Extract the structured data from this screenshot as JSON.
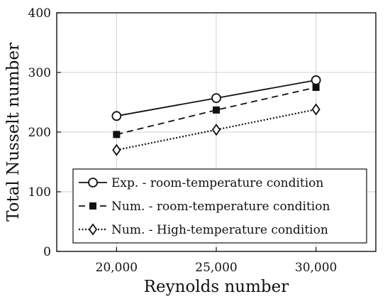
{
  "chart_data": {
    "type": "line",
    "title": "",
    "xlabel": "Reynolds number",
    "ylabel": "Total Nusselt number",
    "x": [
      20000,
      25000,
      30000
    ],
    "x_tick_labels": [
      "20,000",
      "25,000",
      "30,000"
    ],
    "xlim": [
      17000,
      33000
    ],
    "ylim": [
      0,
      400
    ],
    "y_ticks": [
      0,
      100,
      200,
      300,
      400
    ],
    "y_tick_labels": [
      "0",
      "100",
      "200",
      "300",
      "400"
    ],
    "grid": true,
    "legend_position": "lower-center",
    "series": [
      {
        "name": "Exp. - room-temperature condition",
        "values": [
          227,
          257,
          287
        ],
        "line": "solid",
        "marker": "open-circle"
      },
      {
        "name": "Num. - room-temperature condition",
        "values": [
          196,
          237,
          275
        ],
        "line": "dashed",
        "marker": "filled-square"
      },
      {
        "name": "Num. - High-temperature condition",
        "values": [
          170,
          204,
          238
        ],
        "line": "dotted",
        "marker": "open-diamond"
      }
    ]
  }
}
